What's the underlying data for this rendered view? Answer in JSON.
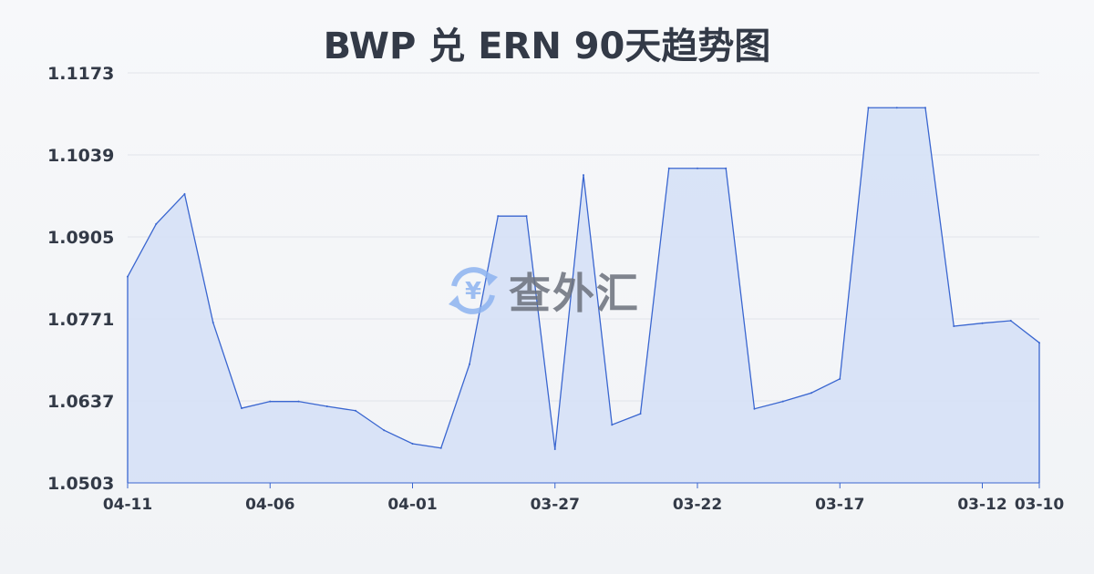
{
  "chart_data": {
    "type": "area",
    "title": "BWP 兑 ERN 90天趋势图",
    "xlabel": "",
    "ylabel": "",
    "x": [
      "04-11",
      "04-10",
      "04-09",
      "04-08",
      "04-07",
      "04-06",
      "04-05",
      "04-04",
      "04-03",
      "04-02",
      "04-01",
      "03-31",
      "03-30",
      "03-29",
      "03-28",
      "03-27",
      "03-26",
      "03-25",
      "03-24",
      "03-23",
      "03-22",
      "03-21",
      "03-20",
      "03-19",
      "03-18",
      "03-17",
      "03-16",
      "03-15",
      "03-14",
      "03-13",
      "03-12",
      "03-11",
      "03-10"
    ],
    "values": [
      1.084,
      1.0926,
      1.0975,
      1.0765,
      1.0625,
      1.0636,
      1.0636,
      1.0628,
      1.0621,
      1.0589,
      1.0567,
      1.056,
      1.0697,
      1.0939,
      1.0939,
      1.0558,
      1.1006,
      1.0598,
      1.0616,
      1.1017,
      1.1017,
      1.1017,
      1.0624,
      1.0636,
      1.065,
      1.0673,
      1.1116,
      1.1116,
      1.1116,
      1.0759,
      1.0764,
      1.0768,
      1.0732
    ],
    "xticks": [
      "04-11",
      "04-06",
      "04-01",
      "03-27",
      "03-22",
      "03-17",
      "03-12",
      "03-10"
    ],
    "yticks": [
      "1.0503",
      "1.0637",
      "1.0771",
      "1.0905",
      "1.1039",
      "1.1173"
    ],
    "ylim": [
      1.0503,
      1.1173
    ],
    "grid": true,
    "colors": {
      "line": "#3a66d0",
      "fill": "#d6e1f6"
    }
  },
  "watermark": {
    "text": "查外汇",
    "icon": "yuen-exchange-icon"
  }
}
